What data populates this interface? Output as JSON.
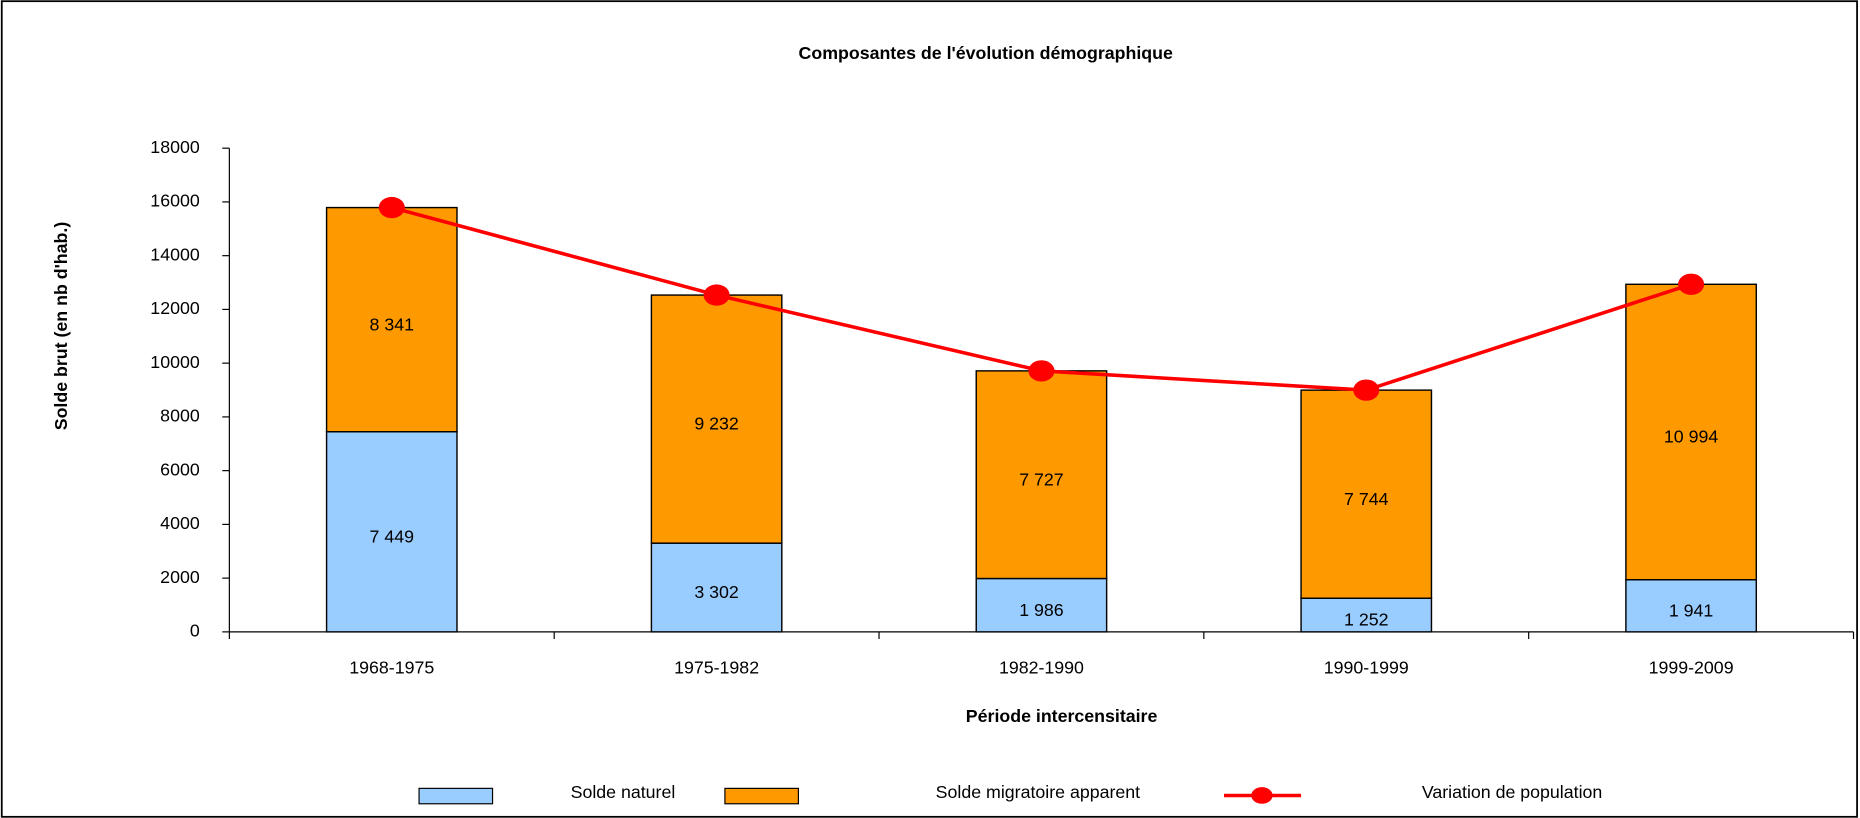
{
  "chart_data": {
    "type": "bar",
    "stacked": true,
    "title": "Composantes de l'évolution démographique",
    "x_label": "Période intercensitaire",
    "y_label": "Solde brut (en nb d'hab.)",
    "categories": [
      "1968-1975",
      "1975-1982",
      "1982-1990",
      "1990-1999",
      "1999-2009"
    ],
    "series": [
      {
        "name": "Solde naturel",
        "type": "bar",
        "color": "#99ccff",
        "values": [
          7449,
          3302,
          1986,
          1252,
          1941
        ],
        "value_labels": [
          "7 449",
          "3 302",
          "1 986",
          "1 252",
          "1 941"
        ]
      },
      {
        "name": "Solde migratoire apparent",
        "type": "bar",
        "color": "#ff9900",
        "values": [
          8341,
          9232,
          7727,
          7744,
          10994
        ],
        "value_labels": [
          "8 341",
          "9 232",
          "7 727",
          "7 744",
          "10 994"
        ]
      },
      {
        "name": "Variation de population",
        "type": "line",
        "color": "#ff0000",
        "values": [
          15790,
          12534,
          9713,
          8996,
          12935
        ]
      }
    ],
    "ylim": [
      0,
      18000
    ],
    "yticks": [
      0,
      2000,
      4000,
      6000,
      8000,
      10000,
      12000,
      14000,
      16000,
      18000
    ],
    "grid": false,
    "legend": "bottom"
  }
}
